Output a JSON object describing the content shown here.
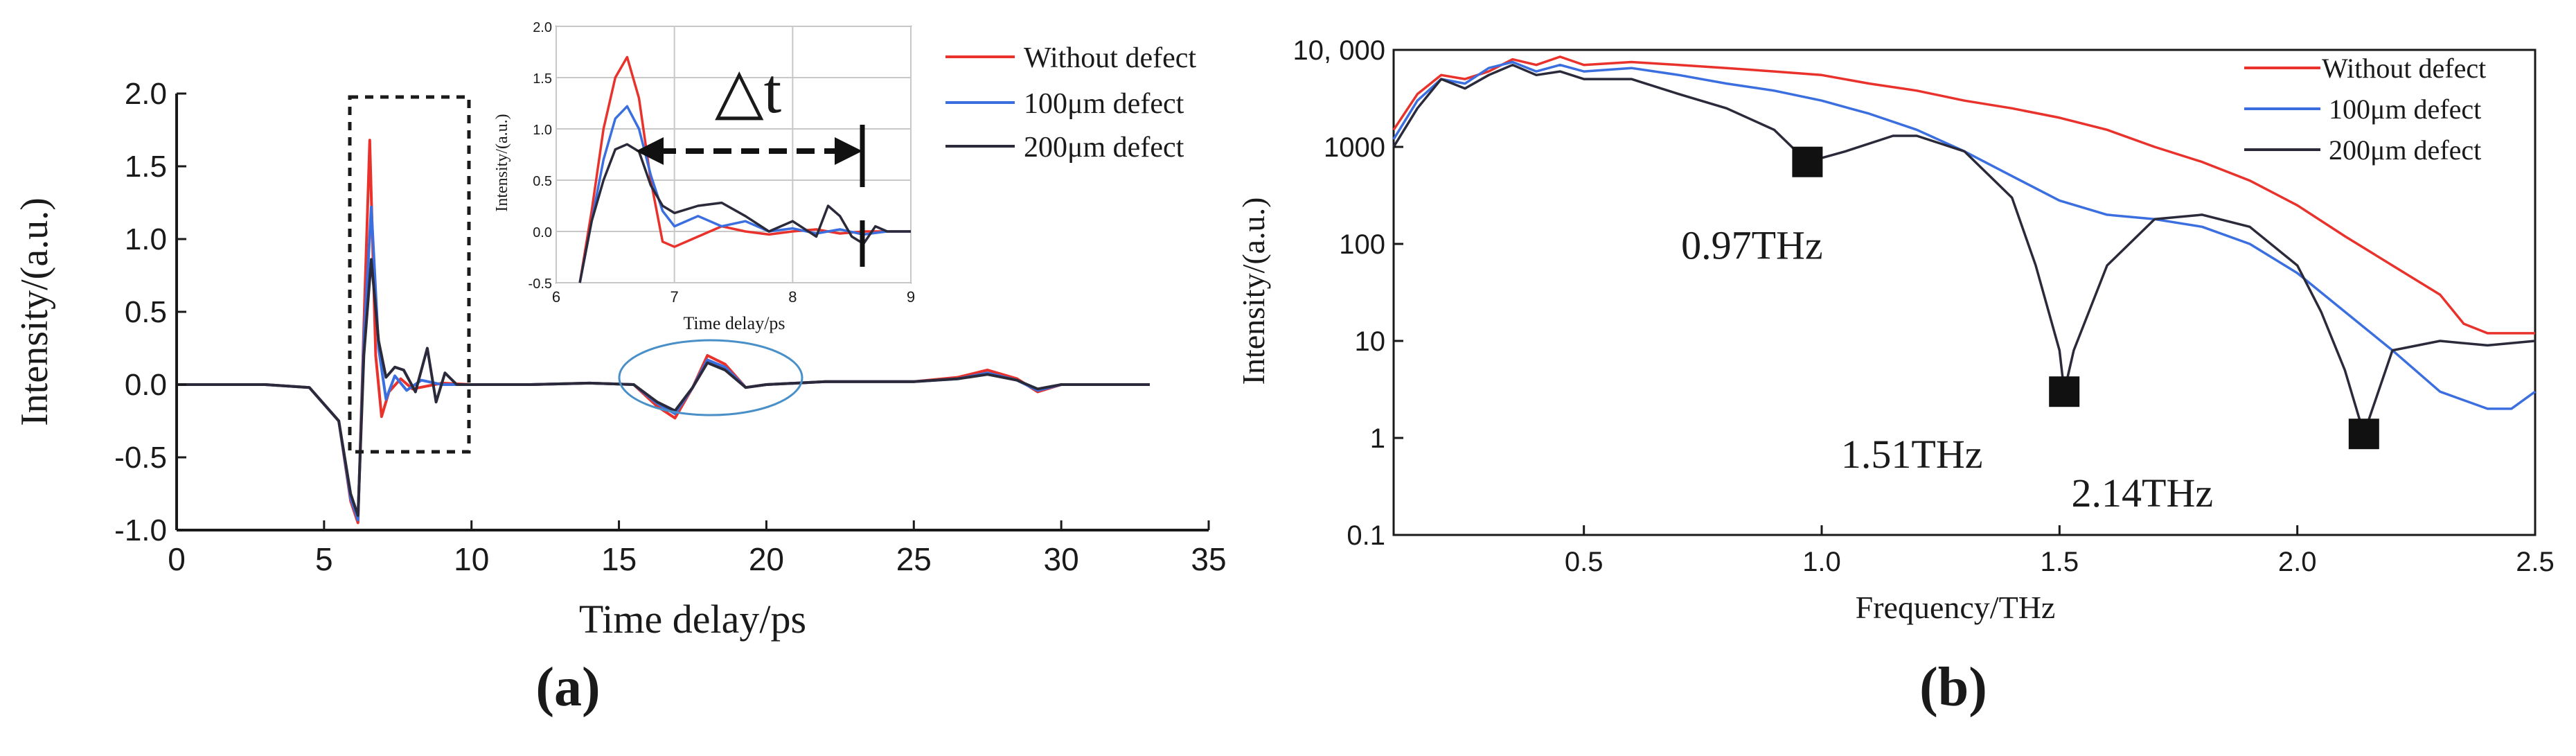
{
  "chart_data": [
    {
      "id": "a",
      "type": "line",
      "panel_label": "(a)",
      "xlabel": "Time delay/ps",
      "ylabel": "Intensity/(a.u.)",
      "xlim": [
        0,
        35
      ],
      "ylim": [
        -1.0,
        2.0
      ],
      "xticks": [
        0,
        5,
        10,
        15,
        20,
        25,
        30,
        35
      ],
      "xtick_labels": [
        "0",
        "5",
        "10",
        "15",
        "20",
        "25",
        "30",
        "35"
      ],
      "yticks": [
        -1.0,
        -0.5,
        0.0,
        0.5,
        1.0,
        1.5,
        2.0
      ],
      "ytick_labels": [
        "-1.0",
        "-0.5",
        "0.0",
        "0.5",
        "1.0",
        "1.5",
        "2.0"
      ],
      "legend": {
        "placement": "top-right, outside",
        "entries": [
          "Without defect",
          "100μm defect",
          "200μm defect"
        ]
      },
      "series": [
        {
          "name": "Without defect",
          "color": "#e8322b",
          "x": [
            0,
            3,
            4.5,
            5.5,
            5.9,
            6.15,
            6.35,
            6.55,
            6.75,
            6.95,
            7.2,
            7.6,
            8,
            9,
            10,
            12,
            14,
            15.5,
            16.3,
            16.9,
            17.5,
            18,
            18.6,
            19.3,
            20,
            22,
            25,
            26.5,
            27.5,
            28.5,
            29.2,
            30,
            33
          ],
          "y": [
            0,
            0,
            -0.02,
            -0.25,
            -0.8,
            -0.95,
            0.4,
            1.68,
            0.2,
            -0.22,
            -0.05,
            0.04,
            -0.03,
            0.01,
            0,
            0,
            0.01,
            0,
            -0.15,
            -0.23,
            -0.02,
            0.2,
            0.14,
            -0.02,
            0,
            0.02,
            0.02,
            0.05,
            0.1,
            0.04,
            -0.05,
            0,
            0
          ]
        },
        {
          "name": "100μm defect",
          "color": "#3b6fe0",
          "x": [
            0,
            3,
            4.5,
            5.5,
            5.9,
            6.15,
            6.35,
            6.6,
            6.85,
            7.1,
            7.4,
            7.8,
            8.3,
            9,
            10,
            12,
            14,
            15.5,
            16.3,
            16.9,
            17.5,
            18,
            18.6,
            19.3,
            20,
            22,
            25,
            26.5,
            27.5,
            28.5,
            29.2,
            30,
            33
          ],
          "y": [
            0,
            0,
            -0.02,
            -0.25,
            -0.78,
            -0.93,
            0.3,
            1.22,
            0.25,
            -0.1,
            0.06,
            -0.04,
            0.03,
            0,
            0,
            0,
            0.01,
            0,
            -0.13,
            -0.2,
            -0.02,
            0.17,
            0.12,
            -0.02,
            0,
            0.02,
            0.02,
            0.04,
            0.08,
            0.03,
            -0.04,
            0,
            0
          ]
        },
        {
          "name": "200μm defect",
          "color": "#2a2a3a",
          "x": [
            0,
            3,
            4.5,
            5.5,
            5.9,
            6.15,
            6.35,
            6.6,
            6.85,
            7.1,
            7.4,
            7.7,
            8.1,
            8.5,
            8.8,
            9.1,
            9.5,
            10,
            12,
            14,
            15.5,
            16.3,
            16.9,
            17.5,
            18,
            18.6,
            19.3,
            20,
            22,
            25,
            26.5,
            27.5,
            28.5,
            29.2,
            30,
            33
          ],
          "y": [
            0,
            0,
            -0.02,
            -0.25,
            -0.75,
            -0.9,
            0.2,
            0.86,
            0.3,
            0.05,
            0.12,
            0.1,
            -0.05,
            0.25,
            -0.12,
            0.08,
            0,
            0,
            0,
            0.01,
            0,
            -0.12,
            -0.18,
            -0.02,
            0.15,
            0.1,
            -0.02,
            0,
            0.02,
            0.02,
            0.04,
            0.07,
            0.03,
            -0.03,
            0,
            0
          ]
        }
      ],
      "annotations": [
        {
          "type": "dashed-rectangle",
          "x_range": [
            6,
            10
          ],
          "y_range": [
            -0.5,
            1.9
          ]
        },
        {
          "type": "ellipse",
          "center": [
            17.5,
            0.0
          ],
          "radii_data": [
            2.5,
            0.25
          ]
        }
      ],
      "inset": {
        "xlabel": "Time delay/ps",
        "ylabel": "Intensity/(a.u.)",
        "xlim": [
          6,
          9
        ],
        "ylim": [
          -0.5,
          2.0
        ],
        "xticks": [
          6,
          7,
          8,
          9
        ],
        "xtick_labels": [
          "6",
          "7",
          "8",
          "9"
        ],
        "yticks": [
          -0.5,
          0.0,
          0.5,
          1.0,
          1.5,
          2.0
        ],
        "ytick_labels": [
          "-0.5",
          "0.0",
          "0.5",
          "1.0",
          "1.5",
          "2.0"
        ],
        "grid": true,
        "arrow_label": "△t",
        "arrow_from": 6.6,
        "arrow_to": 8.55,
        "series": [
          {
            "name": "Without defect",
            "color": "#e8322b",
            "x": [
              6.2,
              6.3,
              6.4,
              6.5,
              6.6,
              6.7,
              6.8,
              6.9,
              7.0,
              7.2,
              7.4,
              7.6,
              7.8,
              8.0,
              8.2,
              8.4,
              8.6,
              8.8,
              9.0
            ],
            "y": [
              -0.5,
              0.2,
              1.0,
              1.5,
              1.7,
              1.3,
              0.5,
              -0.1,
              -0.15,
              -0.05,
              0.05,
              0.0,
              -0.03,
              0.0,
              0.02,
              -0.02,
              0.0,
              0.0,
              0.0
            ]
          },
          {
            "name": "100μm defect",
            "color": "#3b6fe0",
            "x": [
              6.2,
              6.3,
              6.4,
              6.5,
              6.6,
              6.7,
              6.8,
              6.9,
              7.0,
              7.2,
              7.4,
              7.6,
              7.8,
              8.0,
              8.2,
              8.4,
              8.6,
              8.8,
              9.0
            ],
            "y": [
              -0.5,
              0.1,
              0.7,
              1.1,
              1.22,
              1.0,
              0.55,
              0.2,
              0.05,
              0.15,
              0.05,
              0.1,
              0.0,
              0.03,
              -0.02,
              0.02,
              -0.03,
              0.0,
              0.0
            ]
          },
          {
            "name": "200μm defect",
            "color": "#2a2a3a",
            "x": [
              6.2,
              6.3,
              6.4,
              6.5,
              6.6,
              6.7,
              6.8,
              6.9,
              7.0,
              7.2,
              7.4,
              7.6,
              7.8,
              8.0,
              8.2,
              8.3,
              8.4,
              8.5,
              8.6,
              8.7,
              8.8,
              9.0
            ],
            "y": [
              -0.5,
              0.1,
              0.5,
              0.8,
              0.85,
              0.78,
              0.45,
              0.25,
              0.18,
              0.25,
              0.28,
              0.15,
              0.0,
              0.1,
              -0.05,
              0.25,
              0.15,
              -0.05,
              -0.12,
              0.05,
              0.0,
              0.0
            ]
          }
        ]
      }
    },
    {
      "id": "b",
      "type": "line",
      "panel_label": "(b)",
      "xlabel": "Frequency/THz",
      "ylabel": "Intensity/(a.u.)",
      "yscale": "log",
      "xlim": [
        0.1,
        2.5
      ],
      "ylim": [
        0.1,
        10000
      ],
      "xticks": [
        0.5,
        1.0,
        1.5,
        2.0,
        2.5
      ],
      "xtick_labels": [
        "0.5",
        "1.0",
        "1.5",
        "2.0",
        "2.5"
      ],
      "yticks": [
        0.1,
        1,
        10,
        100,
        1000,
        10000
      ],
      "ytick_labels": [
        "0.1",
        "1",
        "10",
        "100",
        "1000",
        "10, 000"
      ],
      "legend": {
        "placement": "top-right",
        "entries": [
          "Without defect",
          "100μm defect",
          "200μm defect"
        ]
      },
      "series": [
        {
          "name": "Without defect",
          "color": "#e8322b",
          "x": [
            0.1,
            0.15,
            0.2,
            0.25,
            0.3,
            0.35,
            0.4,
            0.45,
            0.5,
            0.6,
            0.7,
            0.8,
            0.9,
            1.0,
            1.1,
            1.2,
            1.3,
            1.4,
            1.5,
            1.6,
            1.7,
            1.8,
            1.9,
            2.0,
            2.1,
            2.2,
            2.3,
            2.35,
            2.4,
            2.5
          ],
          "y": [
            1500,
            3500,
            5500,
            5000,
            6000,
            8000,
            7000,
            8500,
            7000,
            7500,
            7000,
            6500,
            6000,
            5500,
            4500,
            3800,
            3000,
            2500,
            2000,
            1500,
            1000,
            700,
            450,
            250,
            120,
            60,
            30,
            15,
            12,
            12
          ]
        },
        {
          "name": "100μm defect",
          "color": "#3b6fe0",
          "x": [
            0.1,
            0.15,
            0.2,
            0.25,
            0.3,
            0.35,
            0.4,
            0.45,
            0.5,
            0.6,
            0.7,
            0.8,
            0.9,
            1.0,
            1.1,
            1.2,
            1.3,
            1.4,
            1.5,
            1.6,
            1.7,
            1.8,
            1.9,
            2.0,
            2.1,
            2.2,
            2.3,
            2.4,
            2.45,
            2.5
          ],
          "y": [
            1200,
            3000,
            5000,
            4500,
            6500,
            7500,
            6000,
            7000,
            6000,
            6500,
            5500,
            4500,
            3800,
            3000,
            2200,
            1500,
            900,
            500,
            280,
            200,
            180,
            150,
            100,
            50,
            20,
            8,
            3,
            2,
            2,
            3
          ]
        },
        {
          "name": "200μm defect",
          "color": "#2a2a3a",
          "x": [
            0.1,
            0.15,
            0.2,
            0.25,
            0.3,
            0.35,
            0.4,
            0.45,
            0.5,
            0.6,
            0.7,
            0.8,
            0.9,
            0.97,
            1.05,
            1.15,
            1.2,
            1.3,
            1.4,
            1.45,
            1.5,
            1.51,
            1.53,
            1.6,
            1.7,
            1.8,
            1.9,
            2.0,
            2.05,
            2.1,
            2.14,
            2.2,
            2.3,
            2.4,
            2.5
          ],
          "y": [
            1000,
            2500,
            5000,
            4000,
            5500,
            7000,
            5500,
            6000,
            5000,
            5000,
            3500,
            2500,
            1500,
            700,
            900,
            1300,
            1300,
            900,
            300,
            60,
            8,
            3,
            8,
            60,
            180,
            200,
            150,
            60,
            20,
            5,
            1.1,
            8,
            10,
            9,
            10
          ]
        }
      ],
      "markers": [
        {
          "x": 0.97,
          "y": 700,
          "label": "0.97THz"
        },
        {
          "x": 1.51,
          "y": 3,
          "label": "1.51THz"
        },
        {
          "x": 2.14,
          "y": 1.1,
          "label": "2.14THz"
        }
      ]
    }
  ]
}
